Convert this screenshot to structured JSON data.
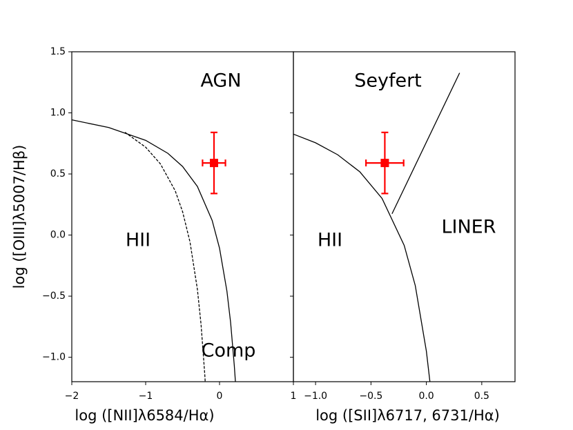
{
  "chart_data": [
    {
      "type": "line",
      "xlabel": "log ([NII]λ6584/Hα)",
      "ylabel": "log ([OIII]λ5007/Hβ)",
      "xlim": [
        -2,
        1
      ],
      "ylim": [
        -1.2,
        1.5
      ],
      "xticks": [
        {
          "value": -2,
          "label": "−2"
        },
        {
          "value": -1,
          "label": "−1"
        },
        0,
        1
      ],
      "yticks": [
        {
          "value": -1,
          "label": "−1.0"
        },
        {
          "value": -0.5,
          "label": "−0.5"
        },
        {
          "value": 0,
          "label": "0.0"
        },
        0.5,
        {
          "value": 1,
          "label": "1.0"
        },
        1.5
      ],
      "show_ytick_labels": true,
      "series": [
        {
          "color": "#000000",
          "dash": false,
          "x": [
            -2,
            -1.5,
            -1,
            -0.7,
            -0.5,
            -0.3,
            -0.1,
            0,
            0.1,
            0.15,
            0.2,
            0.215
          ],
          "values": [
            0.943,
            0.88,
            0.775,
            0.669,
            0.561,
            0.398,
            0.12,
            -0.108,
            -0.459,
            -0.716,
            -1.069,
            -1.2
          ]
        },
        {
          "color": "#000000",
          "dash": true,
          "x": [
            -1.28,
            -1,
            -0.8,
            -0.6,
            -0.5,
            -0.4,
            -0.3,
            -0.25,
            -0.2,
            -0.194
          ],
          "values": [
            0.841,
            0.719,
            0.582,
            0.362,
            0.191,
            -0.056,
            -0.443,
            -0.733,
            -1.14,
            -1.2
          ]
        }
      ],
      "points": [
        {
          "color": "#ff0000",
          "x": -0.075,
          "y": 0.59,
          "xerr": 0.155,
          "yerr": 0.25
        }
      ],
      "annotations": [
        "AGN",
        "HII",
        "Comp"
      ]
    },
    {
      "type": "line",
      "xlabel": "log ([SII]λ6717, 6731/Hα)",
      "xlim": [
        -1.2,
        0.8
      ],
      "ylim": [
        -1.2,
        1.5
      ],
      "xticks": [
        {
          "value": -1,
          "label": "−1.0"
        },
        {
          "value": -0.5,
          "label": "−0.5"
        },
        {
          "value": 0,
          "label": "0.0"
        },
        0.5
      ],
      "yticks": [
        -1,
        -0.5,
        0,
        0.5,
        1,
        1.5
      ],
      "show_ytick_labels": false,
      "series": [
        {
          "color": "#000000",
          "dash": false,
          "x": [
            -1.2,
            -1,
            -0.8,
            -0.6,
            -0.4,
            -0.2,
            -0.1,
            0,
            0.032
          ],
          "values": [
            0.826,
            0.755,
            0.657,
            0.517,
            0.3,
            -0.085,
            -0.414,
            -0.95,
            -1.2
          ]
        },
        {
          "color": "#000000",
          "dash": false,
          "x": [
            -0.31,
            0.3
          ],
          "values": [
            0.174,
            1.327
          ]
        }
      ],
      "points": [
        {
          "color": "#ff0000",
          "x": -0.375,
          "y": 0.59,
          "xerr": 0.17,
          "yerr": 0.25
        }
      ],
      "annotations": [
        "Seyfert",
        "HII",
        "LINER"
      ]
    }
  ]
}
